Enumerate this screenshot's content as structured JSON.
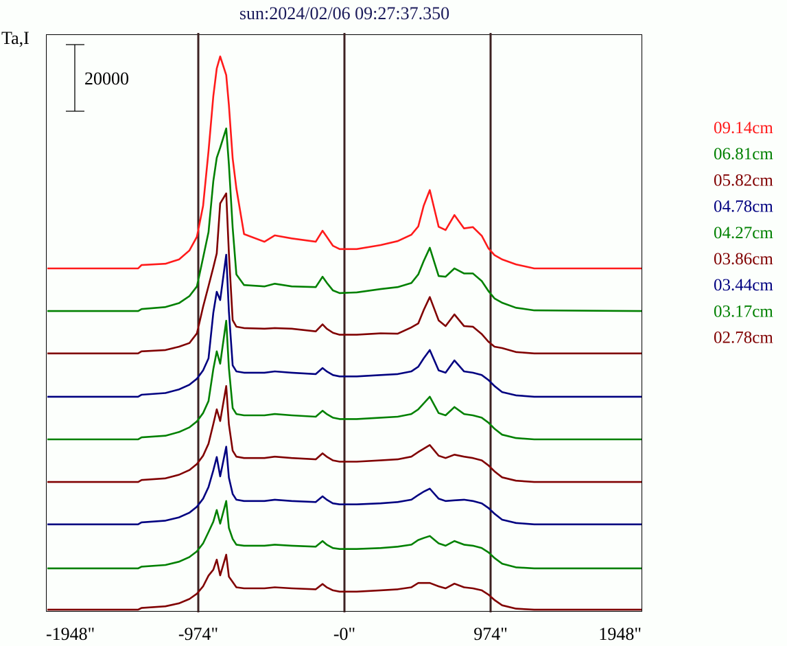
{
  "chart_data": {
    "type": "line",
    "title": "sun:2024/02/06 09:27:37.350",
    "ylabel": "Ta,I",
    "xlabel": "",
    "scale_bar_label": "20000",
    "scale_bar_value": 20000,
    "xlim": [
      -1980,
      1980
    ],
    "x_ticks": [
      {
        "value": -1948,
        "label": "-1948\""
      },
      {
        "value": -974,
        "label": "-974\""
      },
      {
        "value": 0,
        "label": "-0\""
      },
      {
        "value": 974,
        "label": "974\""
      },
      {
        "value": 1948,
        "label": "1948\""
      }
    ],
    "limb_lines": [
      -974,
      0,
      974
    ],
    "legend_position": "right",
    "x": [
      -1980,
      -1375,
      -1352,
      -1193,
      -1102,
      -1033,
      -983,
      -942,
      -906,
      -874,
      -851,
      -828,
      -788,
      -770,
      -745,
      -720,
      -669,
      -533,
      -464,
      -351,
      -191,
      -146,
      -118,
      -77,
      -32,
      82,
      241,
      355,
      446,
      492,
      528,
      569,
      628,
      674,
      733,
      797,
      856,
      915,
      960,
      1000,
      1051,
      1143,
      1265,
      1980
    ],
    "series": [
      {
        "name": "09.14cm",
        "color": "#ff1a1a",
        "offset": 102800,
        "values": [
          0,
          0,
          1000,
          1400,
          2700,
          5400,
          9500,
          18800,
          35200,
          51700,
          60000,
          63600,
          58000,
          49000,
          33000,
          24000,
          10300,
          8000,
          9900,
          9000,
          8000,
          11300,
          9500,
          6800,
          5800,
          5800,
          7000,
          8200,
          10100,
          12600,
          18800,
          23500,
          12500,
          11500,
          16000,
          12000,
          12400,
          9800,
          6000,
          4000,
          2700,
          1200,
          0,
          0
        ]
      },
      {
        "name": "06.81cm",
        "color": "#008000",
        "offset": 90000,
        "values": [
          0,
          0,
          600,
          1200,
          2400,
          4500,
          7400,
          16000,
          23700,
          39000,
          46000,
          49000,
          54800,
          44000,
          25000,
          11000,
          7800,
          7400,
          8200,
          7400,
          7200,
          10300,
          8500,
          6200,
          5400,
          5600,
          6600,
          7200,
          8400,
          11000,
          15000,
          19000,
          10500,
          10300,
          12800,
          11300,
          11300,
          9000,
          6000,
          3800,
          2500,
          1000,
          200,
          0
        ]
      },
      {
        "name": "05.82cm",
        "color": "#800000",
        "offset": 77300,
        "values": [
          0,
          0,
          600,
          1000,
          2000,
          3100,
          6000,
          14000,
          20200,
          25800,
          30000,
          45000,
          48000,
          30000,
          10000,
          8000,
          7600,
          7400,
          7600,
          7400,
          6600,
          8700,
          7400,
          6200,
          5600,
          5600,
          6000,
          5900,
          7800,
          9000,
          13000,
          16900,
          9900,
          8200,
          11700,
          8200,
          8000,
          5800,
          3500,
          2000,
          1600,
          400,
          0,
          0
        ]
      },
      {
        "name": "04.78cm",
        "color": "#000080",
        "offset": 64300,
        "values": [
          0,
          0,
          600,
          1100,
          2200,
          3600,
          5400,
          7900,
          11500,
          25200,
          31500,
          29000,
          42600,
          25600,
          9400,
          7600,
          7200,
          7200,
          7600,
          7200,
          6800,
          8600,
          7600,
          6500,
          6100,
          6100,
          6500,
          6800,
          7600,
          9000,
          11500,
          14000,
          7900,
          7200,
          10900,
          7600,
          7200,
          6500,
          5000,
          3200,
          1400,
          400,
          0,
          0
        ]
      },
      {
        "name": "04.27cm",
        "color": "#008000",
        "offset": 51500,
        "values": [
          0,
          0,
          600,
          1100,
          2200,
          3600,
          5400,
          7900,
          11500,
          21100,
          26400,
          22700,
          35600,
          21400,
          9400,
          7600,
          7200,
          7200,
          7600,
          7200,
          6800,
          8600,
          7600,
          6500,
          6100,
          6100,
          6500,
          6800,
          7600,
          9000,
          10800,
          12800,
          7900,
          7200,
          9700,
          7600,
          7200,
          6500,
          5000,
          3200,
          1400,
          400,
          0,
          0
        ]
      },
      {
        "name": "03.86cm",
        "color": "#800000",
        "offset": 38700,
        "values": [
          0,
          0,
          600,
          1100,
          2200,
          3600,
          5400,
          7900,
          11500,
          17400,
          21800,
          18300,
          28800,
          17300,
          9400,
          7600,
          7200,
          7200,
          7600,
          7200,
          6800,
          8600,
          7600,
          6500,
          6100,
          6100,
          6500,
          6800,
          7600,
          9000,
          10000,
          11100,
          7900,
          7200,
          8200,
          7600,
          7200,
          6500,
          5000,
          3200,
          1400,
          400,
          0,
          0
        ]
      },
      {
        "name": "03.44cm",
        "color": "#000080",
        "offset": 26000,
        "values": [
          0,
          0,
          600,
          1100,
          2100,
          3500,
          5300,
          7700,
          11200,
          16200,
          20200,
          14400,
          23300,
          14000,
          9100,
          7400,
          7000,
          7000,
          7400,
          7000,
          6700,
          8400,
          7400,
          6300,
          6000,
          6000,
          6300,
          6700,
          7400,
          8800,
          9800,
          10700,
          7700,
          7000,
          7200,
          7400,
          7000,
          6300,
          4900,
          3200,
          1400,
          400,
          0,
          0
        ]
      },
      {
        "name": "03.17cm",
        "color": "#008000",
        "offset": 12800,
        "values": [
          0,
          0,
          500,
          1000,
          2000,
          3400,
          5100,
          7500,
          10900,
          14000,
          17500,
          13400,
          20200,
          12100,
          8800,
          7100,
          6800,
          6800,
          7100,
          6800,
          6500,
          8200,
          7100,
          6100,
          5800,
          5800,
          6100,
          6500,
          7100,
          8500,
          9100,
          9700,
          7500,
          6800,
          8200,
          7100,
          6800,
          6100,
          4800,
          3100,
          1400,
          300,
          0,
          0
        ]
      },
      {
        "name": "02.78cm",
        "color": "#800000",
        "offset": 400,
        "values": [
          0,
          0,
          500,
          1000,
          1900,
          3200,
          4800,
          7000,
          10200,
          12000,
          15000,
          10300,
          16500,
          9900,
          8300,
          6700,
          6400,
          6400,
          6700,
          6400,
          6100,
          7700,
          6700,
          5800,
          5400,
          5400,
          5800,
          6100,
          6700,
          8000,
          8000,
          8000,
          7000,
          6400,
          7800,
          6700,
          6400,
          5800,
          4500,
          2900,
          1300,
          300,
          0,
          0
        ]
      }
    ]
  }
}
